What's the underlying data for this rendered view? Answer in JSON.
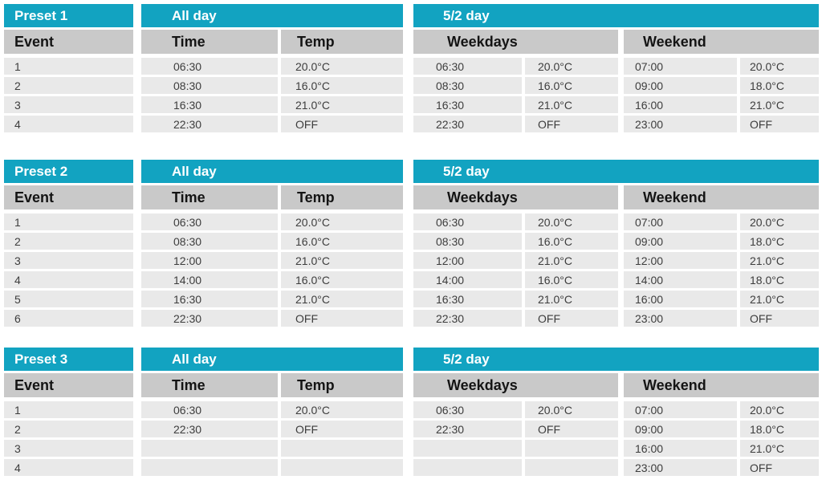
{
  "colors": {
    "accent": "#12A3C1",
    "header_gray": "#C9C9C9",
    "row_gray": "#E9E9E9",
    "data_text": "#3D3D3D",
    "header_text": "#141414"
  },
  "labels": {
    "event": "Event",
    "all_day": "All day",
    "split_day": "5/2 day",
    "time": "Time",
    "temp": "Temp",
    "weekdays": "Weekdays",
    "weekend": "Weekend"
  },
  "presets": [
    {
      "title": "Preset 1",
      "rows": [
        {
          "event": "1",
          "all_time": "06:30",
          "all_temp": "20.0°C",
          "wd_time": "06:30",
          "wd_temp": "20.0°C",
          "we_time": "07:00",
          "we_temp": "20.0°C"
        },
        {
          "event": "2",
          "all_time": "08:30",
          "all_temp": "16.0°C",
          "wd_time": "08:30",
          "wd_temp": "16.0°C",
          "we_time": "09:00",
          "we_temp": "18.0°C"
        },
        {
          "event": "3",
          "all_time": "16:30",
          "all_temp": "21.0°C",
          "wd_time": "16:30",
          "wd_temp": "21.0°C",
          "we_time": "16:00",
          "we_temp": "21.0°C"
        },
        {
          "event": "4",
          "all_time": "22:30",
          "all_temp": "OFF",
          "wd_time": "22:30",
          "wd_temp": "OFF",
          "we_time": "23:00",
          "we_temp": "OFF"
        }
      ]
    },
    {
      "title": "Preset 2",
      "rows": [
        {
          "event": "1",
          "all_time": "06:30",
          "all_temp": "20.0°C",
          "wd_time": "06:30",
          "wd_temp": "20.0°C",
          "we_time": "07:00",
          "we_temp": "20.0°C"
        },
        {
          "event": "2",
          "all_time": "08:30",
          "all_temp": "16.0°C",
          "wd_time": "08:30",
          "wd_temp": "16.0°C",
          "we_time": "09:00",
          "we_temp": "18.0°C"
        },
        {
          "event": "3",
          "all_time": "12:00",
          "all_temp": "21.0°C",
          "wd_time": "12:00",
          "wd_temp": "21.0°C",
          "we_time": "12:00",
          "we_temp": "21.0°C"
        },
        {
          "event": "4",
          "all_time": "14:00",
          "all_temp": "16.0°C",
          "wd_time": "14:00",
          "wd_temp": "16.0°C",
          "we_time": "14:00",
          "we_temp": "18.0°C"
        },
        {
          "event": "5",
          "all_time": "16:30",
          "all_temp": "21.0°C",
          "wd_time": "16:30",
          "wd_temp": "21.0°C",
          "we_time": "16:00",
          "we_temp": "21.0°C"
        },
        {
          "event": "6",
          "all_time": "22:30",
          "all_temp": "OFF",
          "wd_time": "22:30",
          "wd_temp": "OFF",
          "we_time": "23:00",
          "we_temp": "OFF"
        }
      ]
    },
    {
      "title": "Preset 3",
      "rows": [
        {
          "event": "1",
          "all_time": "06:30",
          "all_temp": "20.0°C",
          "wd_time": "06:30",
          "wd_temp": "20.0°C",
          "we_time": "07:00",
          "we_temp": "20.0°C"
        },
        {
          "event": "2",
          "all_time": "22:30",
          "all_temp": "OFF",
          "wd_time": "22:30",
          "wd_temp": "OFF",
          "we_time": "09:00",
          "we_temp": "18.0°C"
        },
        {
          "event": "3",
          "all_time": "",
          "all_temp": "",
          "wd_time": "",
          "wd_temp": "",
          "we_time": "16:00",
          "we_temp": "21.0°C"
        },
        {
          "event": "4",
          "all_time": "",
          "all_temp": "",
          "wd_time": "",
          "wd_temp": "",
          "we_time": "23:00",
          "we_temp": "OFF"
        }
      ]
    }
  ]
}
